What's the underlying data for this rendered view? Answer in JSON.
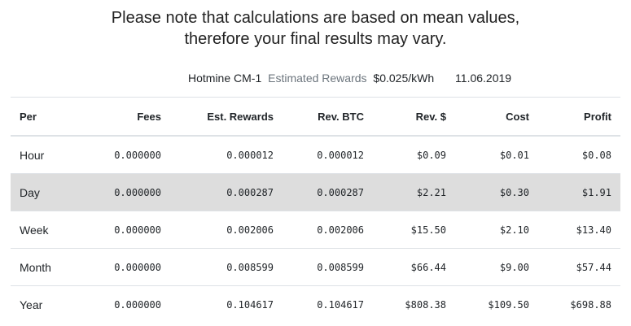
{
  "note": {
    "line1": "Please note that calculations are based on mean values,",
    "line2": "therefore your final results may vary."
  },
  "meta": {
    "device": "Hotmine CM-1",
    "label": "Estimated Rewards",
    "price": "$0.025/kWh",
    "date": "11.06.2019"
  },
  "table": {
    "headers": [
      "Per",
      "Fees",
      "Est. Rewards",
      "Rev. BTC",
      "Rev. $",
      "Cost",
      "Profit"
    ],
    "rows": [
      {
        "per": "Hour",
        "fees": "0.000000",
        "est": "0.000012",
        "btc": "0.000012",
        "rev": "$0.09",
        "cost": "$0.01",
        "profit": "$0.08"
      },
      {
        "per": "Day",
        "fees": "0.000000",
        "est": "0.000287",
        "btc": "0.000287",
        "rev": "$2.21",
        "cost": "$0.30",
        "profit": "$1.91"
      },
      {
        "per": "Week",
        "fees": "0.000000",
        "est": "0.002006",
        "btc": "0.002006",
        "rev": "$15.50",
        "cost": "$2.10",
        "profit": "$13.40"
      },
      {
        "per": "Month",
        "fees": "0.000000",
        "est": "0.008599",
        "btc": "0.008599",
        "rev": "$66.44",
        "cost": "$9.00",
        "profit": "$57.44"
      },
      {
        "per": "Year",
        "fees": "0.000000",
        "est": "0.104617",
        "btc": "0.104617",
        "rev": "$808.38",
        "cost": "$109.50",
        "profit": "$698.88"
      }
    ]
  },
  "colors": {
    "highlight_row": "#dddddd",
    "muted_text": "#6c757d",
    "border": "#dee2e6"
  }
}
